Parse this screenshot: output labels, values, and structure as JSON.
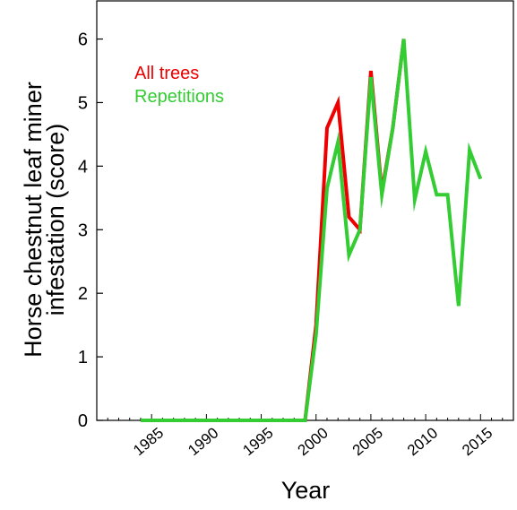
{
  "chart_data": {
    "type": "line",
    "title": "",
    "xlabel": "Year",
    "ylabel_lines": [
      "Horse chestnut leaf miner",
      "infestation (score)"
    ],
    "xlim": [
      1980,
      2018
    ],
    "ylim": [
      0,
      6.6
    ],
    "xticks": [
      1985,
      1990,
      1995,
      2000,
      2005,
      2010,
      2015
    ],
    "yticks": [
      0,
      1,
      2,
      3,
      4,
      5,
      6
    ],
    "grid": false,
    "legend_position": "top-left",
    "series": [
      {
        "name": "All trees",
        "color": "#ee0000",
        "x": [
          1984,
          1998,
          1999,
          2000,
          2001,
          2002,
          2003,
          2004,
          2005,
          2006,
          2007,
          2008
        ],
        "y": [
          0,
          0,
          0,
          1.5,
          4.6,
          5.0,
          3.2,
          3.0,
          5.5,
          3.6,
          4.6,
          6.0
        ]
      },
      {
        "name": "Repetitions",
        "color": "#33cc33",
        "x": [
          1984,
          1998,
          1999,
          2000,
          2001,
          2002,
          2003,
          2004,
          2005,
          2006,
          2007,
          2008,
          2009,
          2010,
          2011,
          2012,
          2013,
          2014,
          2015
        ],
        "y": [
          0,
          0,
          0,
          1.35,
          3.65,
          4.38,
          2.6,
          3.0,
          5.4,
          3.55,
          4.6,
          6.0,
          3.47,
          4.23,
          3.55,
          3.55,
          1.8,
          4.25,
          3.8
        ]
      }
    ]
  }
}
